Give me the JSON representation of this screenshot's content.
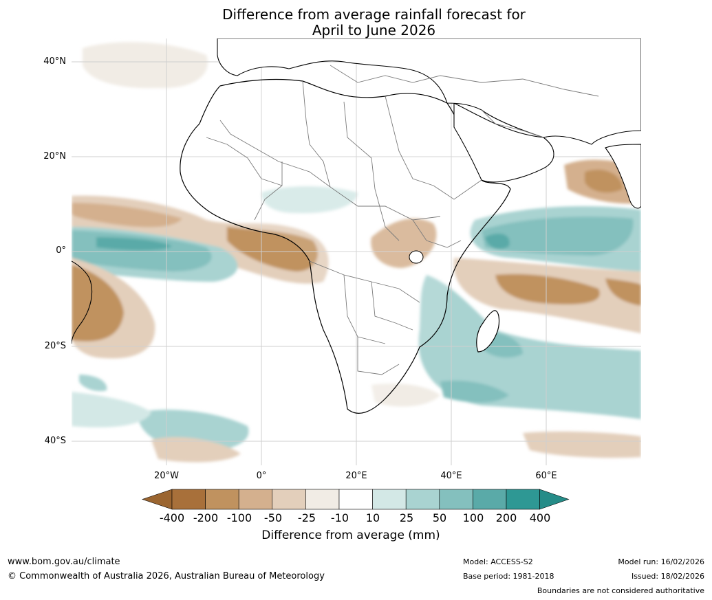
{
  "title": {
    "line1": "Difference from average rainfall forecast for",
    "line2": "April to June 2026"
  },
  "map": {
    "region": "Africa",
    "lat_labels": [
      "40°N",
      "20°N",
      "0°",
      "20°S",
      "40°S"
    ],
    "lon_labels": [
      "20°W",
      "0°",
      "20°E",
      "40°E",
      "60°E"
    ],
    "land_color": "#ffffff",
    "border_color": "#7a7a7a",
    "coast_color": "#000000",
    "gridline_color": "#cfcfcf"
  },
  "legend": {
    "title": "Difference from average (mm)",
    "tick_labels": [
      "-400",
      "-200",
      "-100",
      "-50",
      "-25",
      "-10",
      "10",
      "25",
      "50",
      "100",
      "200",
      "400"
    ],
    "colors": [
      "#a8703a",
      "#c0925f",
      "#d4b08e",
      "#e3cfbb",
      "#f1ece5",
      "#ffffff",
      "#d3e8e6",
      "#a9d3d1",
      "#84c0be",
      "#5aaaa8",
      "#2e9894"
    ],
    "under_color": "#9b6530",
    "over_color": "#258c88"
  },
  "footer": {
    "website": "www.bom.gov.au/climate",
    "copyright": "© Commonwealth of Australia 2026, Australian Bureau of Meteorology",
    "model": "Model: ACCESS-S2",
    "base_period": "Base period: 1981-2018",
    "model_run": "Model run: 16/02/2026",
    "issued": "Issued: 18/02/2026",
    "disclaimer": "Boundaries are not considered authoritative"
  }
}
